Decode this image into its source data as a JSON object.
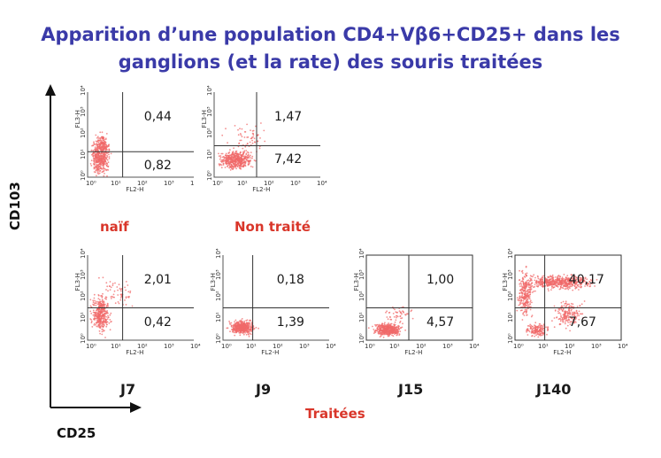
{
  "title": {
    "line1": "Apparition d’une population CD4+Vβ6+CD25+ dans les",
    "line2": "ganglions (et la rate) des souris traitées"
  },
  "axes": {
    "y_title": "CD103",
    "x_title": "CD25",
    "fl3": "FL3-H",
    "fl2": "FL2-H",
    "ticks": [
      "10⁰",
      "10¹",
      "10²",
      "10³",
      "10⁴"
    ]
  },
  "groups": {
    "treated_label": "Traitées"
  },
  "colors": {
    "title": "#3a3aa8",
    "condition": "#d9362a",
    "dots": "#f06a6a",
    "gate": "#333333"
  },
  "chart_data": [
    {
      "type": "scatter",
      "id": "naif",
      "label": "naïf",
      "upper_right": "0,44",
      "lower_right": "0,82"
    },
    {
      "type": "scatter",
      "id": "non-traite",
      "label": "Non traité",
      "upper_right": "1,47",
      "lower_right": "7,42"
    },
    {
      "type": "scatter",
      "id": "j7",
      "label": "J7",
      "upper_right": "2,01",
      "lower_right": "0,42"
    },
    {
      "type": "scatter",
      "id": "j9",
      "label": "J9",
      "upper_right": "0,18",
      "lower_right": "1,39"
    },
    {
      "type": "scatter",
      "id": "j15",
      "label": "J15",
      "upper_right": "1,00",
      "lower_right": "4,57"
    },
    {
      "type": "scatter",
      "id": "j140",
      "label": "J140",
      "upper_right": "40,17",
      "lower_right": "7,67"
    }
  ]
}
